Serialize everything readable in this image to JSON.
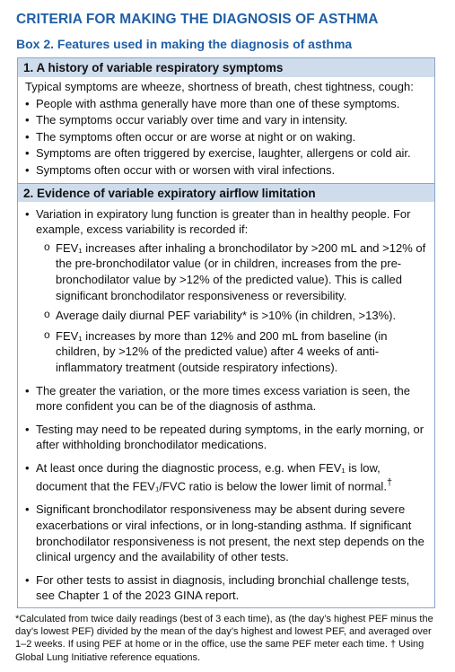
{
  "title": "CRITERIA FOR MAKING THE DIAGNOSIS OF ASTHMA",
  "box_title": "Box 2. Features used in making the diagnosis of asthma",
  "section1": {
    "heading": "1. A history of variable respiratory symptoms",
    "intro": "Typical symptoms are wheeze, shortness of breath, chest tightness, cough:",
    "items": [
      "People with asthma generally have more than one of these symptoms.",
      "The symptoms occur variably over time and vary in intensity.",
      "The symptoms often occur or are worse at night or on waking.",
      "Symptoms are often triggered by exercise, laughter, allergens or cold air.",
      "Symptoms often occur with or worsen with viral infections."
    ]
  },
  "section2": {
    "heading": "2. Evidence of variable expiratory airflow limitation",
    "item1": "Variation in expiratory lung function is greater than in healthy people. For example, excess variability is recorded if:",
    "sub": [
      "FEV₁ increases after inhaling a bronchodilator by >200 mL and >12% of the pre-bronchodilator value (or in children, increases from the pre-bronchodilator value by >12% of the predicted value). This is called significant bronchodilator responsiveness or reversibility.",
      "Average daily diurnal PEF variability* is >10% (in children, >13%).",
      "FEV₁ increases by more than 12% and 200 mL from baseline (in children, by >12% of the predicted value) after 4 weeks of anti-inflammatory treatment (outside respiratory infections)."
    ],
    "item2": "The greater the variation, or the more times excess variation is seen, the more confident you can be of the diagnosis of asthma.",
    "item3": "Testing may need to be repeated during symptoms, in the early morning, or after withholding bronchodilator medications.",
    "item4a": "At least once during the diagnostic process, e.g. when FEV₁ is low,",
    "item4b": "document that the FEV₁/FVC ratio is below the lower limit of normal.",
    "item4_mark": "†",
    "item5": "Significant bronchodilator responsiveness may be absent during severe exacerbations or viral infections, or in long-standing asthma. If significant bronchodilator responsiveness is not present, the next step depends on the clinical urgency and the availability of other tests.",
    "item6": "For other tests to assist in diagnosis, including bronchial challenge tests, see Chapter 1 of the 2023 GINA report."
  },
  "footnote": "*Calculated from twice daily readings (best of 3 each time), as (the day’s highest PEF minus the day’s lowest PEF) divided by the mean of the day’s highest and lowest PEF, and averaged over 1–2 weeks. If using PEF at home or in the office, use the same PEF meter each time. † Using Global Lung Initiative reference equations."
}
